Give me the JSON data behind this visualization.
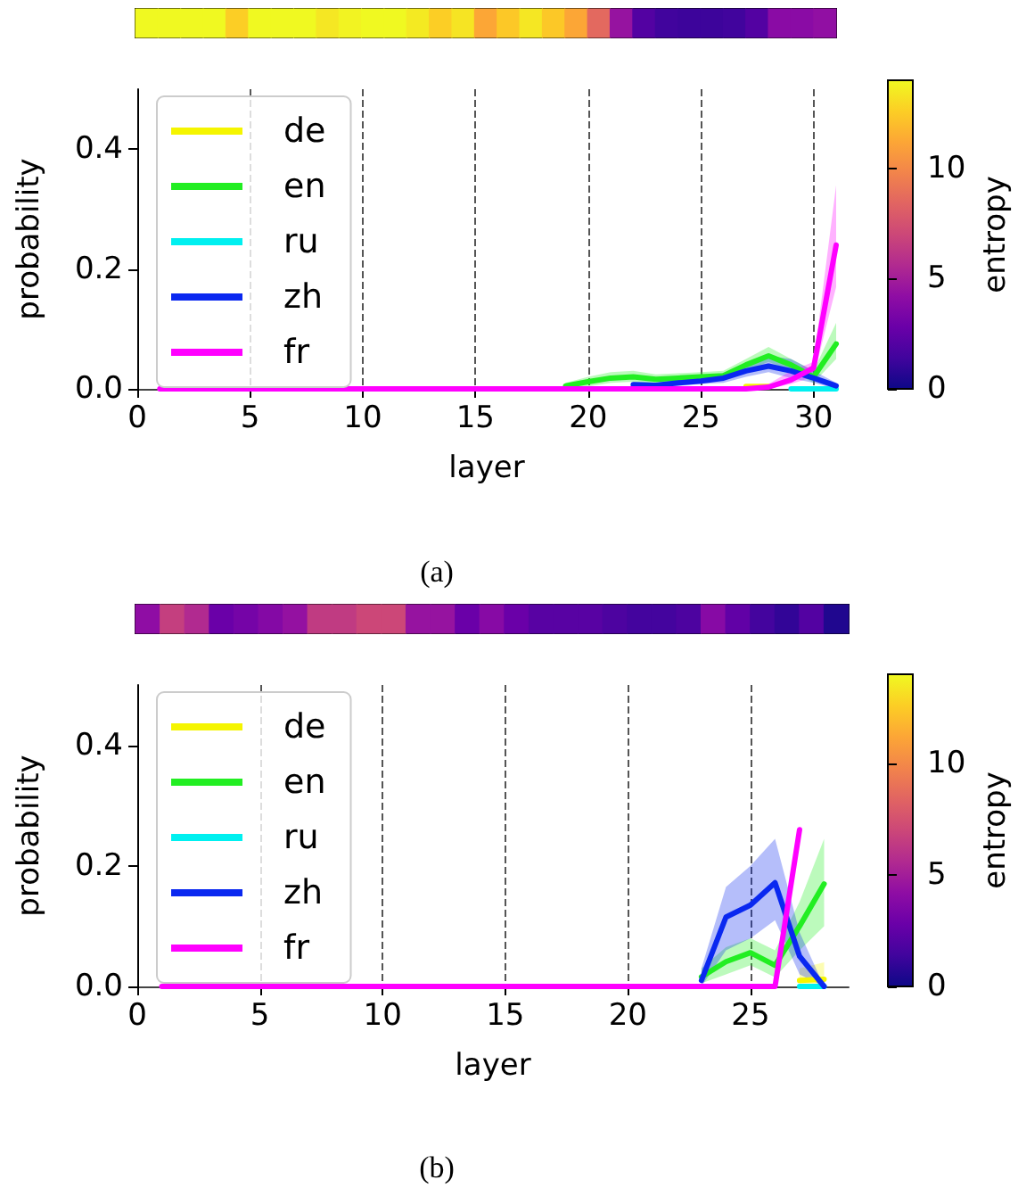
{
  "chart_data": [
    {
      "type": "heatmap",
      "categories": [
        null,
        null,
        null,
        null,
        null,
        null,
        null,
        null,
        null,
        null,
        null,
        null,
        null,
        null,
        null,
        null,
        null,
        null,
        null,
        null,
        null,
        null,
        null,
        null,
        null,
        null,
        null,
        null,
        null,
        null,
        null
      ],
      "y_categories": [
        null
      ],
      "cells": [
        [
          14,
          14,
          14,
          14,
          12.6,
          14,
          14,
          14,
          13.4,
          13.8,
          14,
          14,
          13.5,
          12.6,
          13.3,
          11.2,
          12.4,
          13.4,
          12.4,
          11.2,
          8.6,
          4.5,
          2,
          1.4,
          1.3,
          1.3,
          1.4,
          2,
          4,
          4,
          4.3
        ]
      ],
      "clim": [
        0,
        14
      ],
      "cticks": [
        0,
        5,
        10
      ],
      "clabel": "entropy"
    },
    {
      "type": "line",
      "x": [
        1,
        2,
        3,
        4,
        5,
        6,
        7,
        8,
        9,
        10,
        11,
        12,
        13,
        14,
        15,
        16,
        17,
        18,
        19,
        20,
        21,
        22,
        23,
        24,
        25,
        26,
        27,
        28,
        29,
        30,
        31
      ],
      "xlabel": "layer",
      "ylabel": "probability",
      "xlim": [
        0,
        31
      ],
      "ylim": [
        0,
        0.5
      ],
      "xticks": [
        0,
        5,
        10,
        15,
        20,
        25,
        30
      ],
      "yticks": [
        {
          "value": 0,
          "label": "0.0"
        },
        {
          "value": 0.2,
          "label": "0.2"
        },
        {
          "value": 0.4,
          "label": "0.4"
        }
      ],
      "grid": "x",
      "legend": "left",
      "line_style": "solid",
      "annotations": [
        "(a)"
      ],
      "series": [
        {
          "name": "de",
          "color": "#f5f500",
          "values": [
            null,
            null,
            null,
            null,
            null,
            null,
            null,
            null,
            null,
            null,
            null,
            null,
            null,
            null,
            null,
            null,
            null,
            null,
            null,
            null,
            null,
            null,
            null,
            null,
            null,
            null,
            0.004,
            0.004,
            null,
            null,
            null
          ]
        },
        {
          "name": "en",
          "color": "#22ee22",
          "values": [
            null,
            null,
            null,
            null,
            null,
            null,
            null,
            null,
            null,
            null,
            null,
            null,
            null,
            null,
            null,
            null,
            null,
            null,
            0.005,
            0.012,
            0.018,
            0.02,
            0.016,
            0.018,
            0.02,
            0.022,
            0.04,
            0.055,
            0.04,
            0.02,
            0.075
          ],
          "lower": [
            null,
            null,
            null,
            null,
            null,
            null,
            null,
            null,
            null,
            null,
            null,
            null,
            null,
            null,
            null,
            null,
            null,
            null,
            0,
            0.004,
            0.01,
            0.012,
            0.009,
            0.01,
            0.012,
            0.014,
            0.03,
            0.045,
            0.03,
            0.01,
            0.05
          ],
          "upper": [
            null,
            null,
            null,
            null,
            null,
            null,
            null,
            null,
            null,
            null,
            null,
            null,
            null,
            null,
            null,
            null,
            null,
            null,
            0.01,
            0.02,
            0.028,
            0.03,
            0.024,
            0.026,
            0.028,
            0.03,
            0.05,
            0.07,
            0.05,
            0.03,
            0.11
          ]
        },
        {
          "name": "ru",
          "color": "#00f0f0",
          "values": [
            null,
            null,
            null,
            null,
            null,
            null,
            null,
            null,
            null,
            null,
            null,
            null,
            null,
            null,
            null,
            null,
            null,
            null,
            null,
            null,
            null,
            null,
            null,
            null,
            null,
            null,
            null,
            null,
            0,
            0,
            0
          ]
        },
        {
          "name": "zh",
          "color": "#0a28f0",
          "values": [
            null,
            null,
            null,
            null,
            null,
            null,
            null,
            null,
            null,
            null,
            null,
            null,
            null,
            null,
            null,
            null,
            null,
            null,
            null,
            null,
            null,
            0.007,
            0.006,
            0.01,
            0.013,
            0.018,
            0.03,
            0.038,
            0.03,
            0.018,
            0.005
          ],
          "lower": [
            null,
            null,
            null,
            null,
            null,
            null,
            null,
            null,
            null,
            null,
            null,
            null,
            null,
            null,
            null,
            null,
            null,
            null,
            null,
            null,
            null,
            0.002,
            0.002,
            0.005,
            0.008,
            0.01,
            0.02,
            0.028,
            0.018,
            0.01,
            0
          ],
          "upper": [
            null,
            null,
            null,
            null,
            null,
            null,
            null,
            null,
            null,
            null,
            null,
            null,
            null,
            null,
            null,
            null,
            null,
            null,
            null,
            null,
            null,
            0.012,
            0.01,
            0.015,
            0.02,
            0.026,
            0.04,
            0.055,
            0.05,
            0.03,
            0.01
          ]
        },
        {
          "name": "fr",
          "color": "#ff00ff",
          "values": [
            0,
            0,
            0,
            0,
            0,
            0,
            0,
            0,
            0,
            0,
            0,
            0,
            0,
            0,
            0,
            0,
            0,
            0,
            0,
            0,
            0,
            0,
            0,
            0,
            0,
            0,
            0,
            0.003,
            0.015,
            0.035,
            0.24
          ],
          "lower": [
            null,
            null,
            null,
            null,
            null,
            null,
            null,
            null,
            null,
            null,
            null,
            null,
            null,
            null,
            null,
            null,
            null,
            null,
            null,
            null,
            null,
            null,
            null,
            null,
            null,
            null,
            null,
            0,
            0.008,
            0.02,
            0.17
          ],
          "upper": [
            null,
            null,
            null,
            null,
            null,
            null,
            null,
            null,
            null,
            null,
            null,
            null,
            null,
            null,
            null,
            null,
            null,
            null,
            null,
            null,
            null,
            null,
            null,
            null,
            null,
            null,
            null,
            0.008,
            0.03,
            0.045,
            0.34
          ]
        }
      ]
    },
    {
      "type": "heatmap",
      "categories": [
        null,
        null,
        null,
        null,
        null,
        null,
        null,
        null,
        null,
        null,
        null,
        null,
        null,
        null,
        null,
        null,
        null,
        null,
        null,
        null,
        null,
        null,
        null,
        null,
        null,
        null,
        null,
        null,
        null
      ],
      "y_categories": [
        null
      ],
      "cells": [
        [
          4.2,
          6.6,
          5.6,
          2.8,
          3.2,
          3.8,
          4.4,
          6.4,
          6.4,
          7,
          7,
          4.5,
          4.5,
          2.8,
          3.9,
          2.8,
          2.2,
          2.2,
          2.2,
          1.8,
          1.5,
          1.5,
          1.8,
          3.9,
          2.5,
          1.5,
          1,
          2,
          0.5
        ]
      ],
      "clim": [
        0,
        14
      ],
      "cticks": [
        0,
        5,
        10
      ],
      "clabel": "entropy"
    },
    {
      "type": "line",
      "x": [
        1,
        2,
        3,
        4,
        5,
        6,
        7,
        8,
        9,
        10,
        11,
        12,
        13,
        14,
        15,
        16,
        17,
        18,
        19,
        20,
        21,
        22,
        23,
        24,
        25,
        26,
        27,
        28
      ],
      "xlabel": "layer",
      "ylabel": "probability",
      "xlim": [
        0,
        29
      ],
      "ylim": [
        0,
        0.5
      ],
      "xticks": [
        0,
        5,
        10,
        15,
        20,
        25
      ],
      "yticks": [
        {
          "value": 0,
          "label": "0.0"
        },
        {
          "value": 0.2,
          "label": "0.2"
        },
        {
          "value": 0.4,
          "label": "0.4"
        }
      ],
      "grid": "x",
      "legend": "left",
      "line_style": "solid",
      "annotations": [
        "(b)"
      ],
      "series": [
        {
          "name": "de",
          "color": "#f5f500",
          "values": [
            null,
            null,
            null,
            null,
            null,
            null,
            null,
            null,
            null,
            null,
            null,
            null,
            null,
            null,
            null,
            null,
            null,
            null,
            null,
            null,
            null,
            null,
            null,
            null,
            null,
            null,
            0.01,
            0.012
          ],
          "lower": [
            null,
            null,
            null,
            null,
            null,
            null,
            null,
            null,
            null,
            null,
            null,
            null,
            null,
            null,
            null,
            null,
            null,
            null,
            null,
            null,
            null,
            null,
            null,
            null,
            null,
            null,
            0,
            0
          ],
          "upper": [
            null,
            null,
            null,
            null,
            null,
            null,
            null,
            null,
            null,
            null,
            null,
            null,
            null,
            null,
            null,
            null,
            null,
            null,
            null,
            null,
            null,
            null,
            null,
            null,
            null,
            null,
            0.03,
            0.04
          ]
        },
        {
          "name": "en",
          "color": "#22ee22",
          "values": [
            null,
            null,
            null,
            null,
            null,
            null,
            null,
            null,
            null,
            null,
            null,
            null,
            null,
            null,
            null,
            null,
            null,
            null,
            null,
            null,
            null,
            null,
            0.016,
            0.041,
            0.056,
            0.035,
            0.1,
            0.17
          ],
          "lower": [
            null,
            null,
            null,
            null,
            null,
            null,
            null,
            null,
            null,
            null,
            null,
            null,
            null,
            null,
            null,
            null,
            null,
            null,
            null,
            null,
            null,
            null,
            0.005,
            0.02,
            0.035,
            0.015,
            0.06,
            0.1
          ],
          "upper": [
            null,
            null,
            null,
            null,
            null,
            null,
            null,
            null,
            null,
            null,
            null,
            null,
            null,
            null,
            null,
            null,
            null,
            null,
            null,
            null,
            null,
            null,
            0.03,
            0.065,
            0.08,
            0.06,
            0.14,
            0.245
          ]
        },
        {
          "name": "ru",
          "color": "#00f0f0",
          "values": [
            null,
            null,
            null,
            null,
            null,
            null,
            null,
            null,
            null,
            null,
            null,
            null,
            null,
            null,
            null,
            null,
            null,
            null,
            null,
            null,
            null,
            null,
            null,
            null,
            null,
            null,
            0,
            0
          ]
        },
        {
          "name": "zh",
          "color": "#0a28f0",
          "values": [
            null,
            null,
            null,
            null,
            null,
            null,
            null,
            null,
            null,
            null,
            null,
            null,
            null,
            null,
            null,
            null,
            null,
            null,
            null,
            null,
            null,
            null,
            0.01,
            0.115,
            0.135,
            0.172,
            0.05,
            0
          ],
          "lower": [
            null,
            null,
            null,
            null,
            null,
            null,
            null,
            null,
            null,
            null,
            null,
            null,
            null,
            null,
            null,
            null,
            null,
            null,
            null,
            null,
            null,
            null,
            0,
            0.06,
            0.08,
            0.11,
            0.02,
            0
          ],
          "upper": [
            null,
            null,
            null,
            null,
            null,
            null,
            null,
            null,
            null,
            null,
            null,
            null,
            null,
            null,
            null,
            null,
            null,
            null,
            null,
            null,
            null,
            null,
            0.03,
            0.165,
            0.2,
            0.245,
            0.09,
            0
          ]
        },
        {
          "name": "fr",
          "color": "#ff00ff",
          "values": [
            0,
            0,
            0,
            0,
            0,
            0,
            0,
            0,
            0,
            0,
            0,
            0,
            0,
            0,
            0,
            0,
            0,
            0,
            0,
            0,
            0,
            0,
            0,
            0,
            0,
            0,
            0.26,
            null
          ]
        }
      ]
    }
  ]
}
